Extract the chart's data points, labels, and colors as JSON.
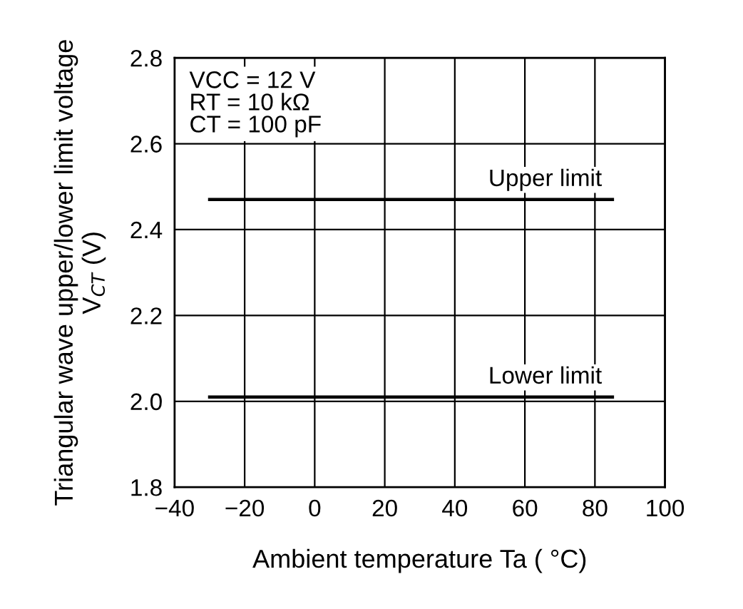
{
  "chart_data": {
    "type": "line",
    "xlabel": "Ambient temperature Ta ( °C)",
    "ylabel": "Triangular wave upper/lower limit voltage\nV$_{CT}$ (V)",
    "x": [
      -30,
      85
    ],
    "series": [
      {
        "name": "Upper limit",
        "color": "#000000",
        "values": [
          2.47,
          2.47
        ]
      },
      {
        "name": "Lower limit",
        "color": "#000000",
        "values": [
          2.01,
          2.01
        ]
      }
    ],
    "xlim": [
      -40,
      100
    ],
    "xticks": [
      {
        "value": -40,
        "label": "−40"
      },
      {
        "value": -20,
        "label": "−20"
      },
      0,
      20,
      40,
      60,
      80,
      100
    ],
    "ylim": [
      1.8,
      2.8
    ],
    "yticks": [
      {
        "value": 1.8,
        "label": "1.8"
      },
      {
        "value": 2.0,
        "label": "2.0"
      },
      {
        "value": 2.2,
        "label": "2.2"
      },
      {
        "value": 2.4,
        "label": "2.4"
      },
      {
        "value": 2.6,
        "label": "2.6"
      },
      {
        "value": 2.8,
        "label": "2.8"
      }
    ],
    "grid": true,
    "legend": false,
    "marker": "none",
    "line_style": "solid",
    "annotations": [
      "VCC = 12 V\nRT = 10 kΩ\nCT = 100 pF"
    ]
  }
}
